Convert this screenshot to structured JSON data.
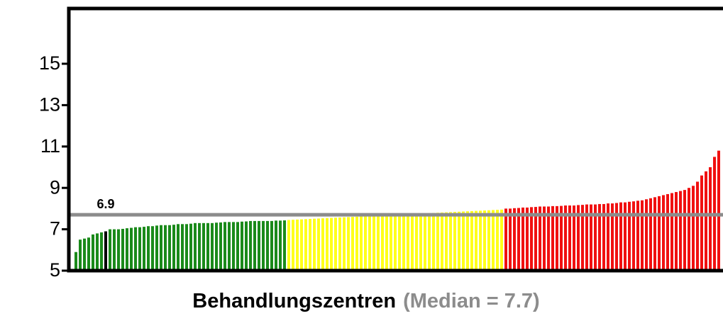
{
  "chart_data": {
    "type": "bar",
    "xlabel": "Behandlungszentren",
    "median_label": "(Median = 7.7)",
    "median": 7.7,
    "median_color": "#8c8c8c",
    "ylim": [
      5,
      17.67
    ],
    "yticks": [
      5,
      7,
      9,
      11,
      13,
      15
    ],
    "series": [
      {
        "color": "#1a8a1a",
        "values": [
          5.9,
          6.5,
          6.55,
          6.6,
          6.75,
          6.8,
          6.85,
          6.9,
          7.0,
          7.0,
          7.0,
          7.02,
          7.05,
          7.07,
          7.1,
          7.1,
          7.12,
          7.15,
          7.15,
          7.18,
          7.2,
          7.2,
          7.2,
          7.22,
          7.25,
          7.25,
          7.25,
          7.27,
          7.3,
          7.3,
          7.3,
          7.3,
          7.3,
          7.32,
          7.33,
          7.35,
          7.35,
          7.35,
          7.35,
          7.37,
          7.38,
          7.4,
          7.4,
          7.4,
          7.4,
          7.4,
          7.4,
          7.42,
          7.42,
          7.43
        ]
      },
      {
        "color": "#ffff1a",
        "values": [
          7.45,
          7.46,
          7.47,
          7.48,
          7.49,
          7.5,
          7.51,
          7.52,
          7.53,
          7.54,
          7.55,
          7.56,
          7.57,
          7.58,
          7.59,
          7.6,
          7.61,
          7.62,
          7.63,
          7.64,
          7.65,
          7.66,
          7.67,
          7.68,
          7.69,
          7.7,
          7.71,
          7.72,
          7.73,
          7.74,
          7.75,
          7.76,
          7.77,
          7.78,
          7.79,
          7.8,
          7.81,
          7.82,
          7.83,
          7.84,
          7.85,
          7.86,
          7.87,
          7.88,
          7.89,
          7.9,
          7.91,
          7.92,
          7.93,
          7.94,
          7.95
        ]
      },
      {
        "color": "#f01010",
        "values": [
          8.0,
          8.0,
          8.02,
          8.03,
          8.05,
          8.05,
          8.07,
          8.08,
          8.1,
          8.1,
          8.1,
          8.12,
          8.12,
          8.13,
          8.15,
          8.15,
          8.15,
          8.17,
          8.18,
          8.2,
          8.2,
          8.2,
          8.22,
          8.22,
          8.25,
          8.25,
          8.27,
          8.3,
          8.3,
          8.33,
          8.35,
          8.38,
          8.4,
          8.45,
          8.5,
          8.55,
          8.6,
          8.65,
          8.7,
          8.75,
          8.8,
          8.85,
          8.9,
          9.0,
          9.1,
          9.3,
          9.6,
          9.8,
          10.0,
          10.5,
          10.8
        ]
      }
    ],
    "highlight": {
      "series": 0,
      "index": 7,
      "color": "#000000",
      "label": "6.9"
    }
  }
}
